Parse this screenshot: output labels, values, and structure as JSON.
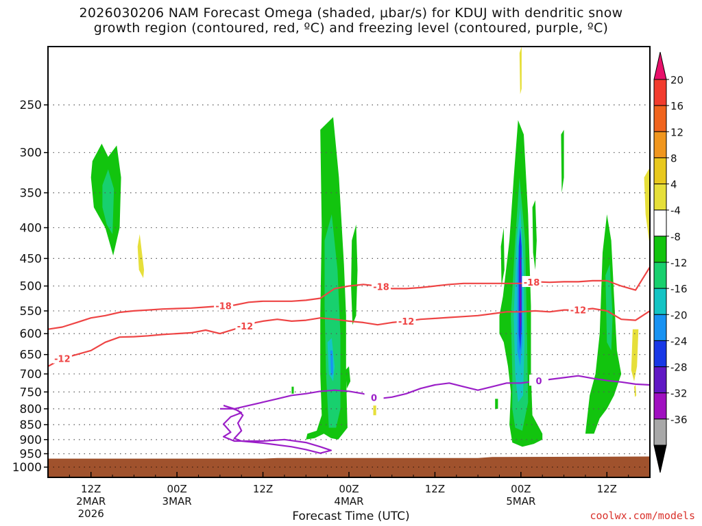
{
  "title": {
    "line1": "2026030206 NAM Forecast Omega (shaded, μbar/s) for KDUJ with dendritic snow",
    "line2": "growth region (contoured, red, ºC) and freezing level (contoured, purple, ºC)"
  },
  "credit": "coolwx.com/models",
  "chart_data": {
    "type": "contour-filled time-height cross section",
    "title": "2026030206 NAM Forecast Omega (shaded, μbar/s) for KDUJ with dendritic snow growth region (contoured, red, ºC) and freezing level (contoured, purple, ºC)",
    "xlabel": "Forecast Time (UTC)",
    "ylabel": "",
    "x_range_hours_since_2026030206": [
      0,
      84
    ],
    "y_axis_pressure_hPa": {
      "range": [
        1040,
        200
      ],
      "ticks": [
        250,
        300,
        350,
        400,
        450,
        500,
        550,
        600,
        650,
        700,
        750,
        800,
        850,
        900,
        950,
        1000
      ],
      "scale": "log"
    },
    "x_ticks": [
      {
        "label": "12Z",
        "sub1": "2MAR",
        "sub2": "2026",
        "hour": 6
      },
      {
        "label": "00Z",
        "sub1": "3MAR",
        "sub2": "",
        "hour": 18
      },
      {
        "label": "12Z",
        "sub1": "",
        "sub2": "",
        "hour": 30
      },
      {
        "label": "00Z",
        "sub1": "4MAR",
        "sub2": "",
        "hour": 42
      },
      {
        "label": "12Z",
        "sub1": "",
        "sub2": "",
        "hour": 54
      },
      {
        "label": "00Z",
        "sub1": "5MAR",
        "sub2": "",
        "hour": 66
      },
      {
        "label": "12Z",
        "sub1": "",
        "sub2": "",
        "hour": 78
      }
    ],
    "grid": "dotted",
    "colorbar": {
      "placement": "right",
      "levels": [
        20,
        16,
        12,
        8,
        4,
        -4,
        -8,
        -12,
        -16,
        -20,
        -24,
        -28,
        -32,
        -36
      ],
      "colors": [
        "#e8106a",
        "#f23c2e",
        "#f0641e",
        "#f0961e",
        "#e8c81e",
        "#e6df3a",
        "#ffffff",
        "#12c40e",
        "#18d06e",
        "#14c4c4",
        "#1892f2",
        "#1838e6",
        "#6018c4",
        "#a010c0",
        "#a8a8a8",
        "#000000"
      ]
    },
    "surface": {
      "color": "#a0522d"
    },
    "contours": {
      "dendritic_minus12": {
        "label": "-12",
        "color": "#ee4444",
        "hours": [
          0,
          2,
          4,
          6,
          8,
          10,
          12,
          14,
          16,
          18,
          20,
          22,
          24,
          26,
          28,
          29,
          30,
          32,
          34,
          36,
          38,
          40,
          42,
          44,
          46,
          48,
          50,
          52,
          54,
          56,
          58,
          60,
          62,
          64,
          66,
          68,
          70,
          72,
          74,
          76,
          78,
          80,
          82,
          84
        ],
        "pressure": [
          680,
          660,
          650,
          640,
          620,
          608,
          607,
          605,
          602,
          600,
          598,
          592,
          600,
          590,
          580,
          575,
          572,
          568,
          572,
          570,
          565,
          568,
          572,
          575,
          580,
          575,
          572,
          568,
          566,
          564,
          562,
          560,
          556,
          552,
          552,
          550,
          552,
          548,
          548,
          545,
          550,
          568,
          570,
          550
        ]
      },
      "dendritic_minus18": {
        "label": "-18",
        "color": "#ee4444",
        "hours": [
          0,
          2,
          4,
          6,
          8,
          10,
          12,
          14,
          16,
          18,
          20,
          22,
          24,
          26,
          28,
          30,
          32,
          34,
          36,
          38,
          40,
          42,
          44,
          46,
          48,
          50,
          52,
          54,
          56,
          58,
          60,
          62,
          64,
          66,
          68,
          70,
          72,
          74,
          76,
          78,
          80,
          82,
          84
        ],
        "pressure": [
          590,
          585,
          575,
          565,
          560,
          553,
          550,
          548,
          546,
          545,
          544,
          542,
          540,
          538,
          532,
          530,
          530,
          530,
          528,
          524,
          505,
          500,
          497,
          500,
          505,
          505,
          503,
          500,
          497,
          495,
          495,
          495,
          495,
          495,
          492,
          493,
          492,
          492,
          490,
          490,
          500,
          508,
          465
        ]
      },
      "freezing_0": {
        "label": "0",
        "color": "#9b1fc8",
        "hours": [
          24,
          26,
          28,
          30,
          32,
          34,
          36,
          38,
          40,
          42,
          44,
          46,
          48,
          50,
          52,
          54,
          56,
          58,
          60,
          62,
          64,
          66,
          68,
          70,
          72,
          74,
          76,
          78,
          80,
          82,
          84
        ],
        "pressure": [
          800,
          800,
          790,
          780,
          770,
          760,
          755,
          748,
          745,
          748,
          755,
          770,
          765,
          755,
          740,
          730,
          725,
          735,
          745,
          735,
          725,
          725,
          720,
          715,
          710,
          705,
          712,
          718,
          722,
          728,
          730
        ]
      }
    },
    "omega_features": [
      {
        "name": "upper-left green cell",
        "hour_center": 8.5,
        "pressure_top": 290,
        "pressure_bottom": 450,
        "min_ubar_s": -12
      },
      {
        "name": "4MAR updraft column",
        "hour_center": 40,
        "pressure_top": 265,
        "pressure_bottom": 900,
        "min_ubar_s": -24
      },
      {
        "name": "5MAR updraft column",
        "hour_center": 66,
        "pressure_top": 265,
        "pressure_bottom": 925,
        "min_ubar_s": -28
      },
      {
        "name": "late-period column",
        "hour_center": 78,
        "pressure_top": 370,
        "pressure_bottom": 880,
        "min_ubar_s": -16
      }
    ]
  }
}
